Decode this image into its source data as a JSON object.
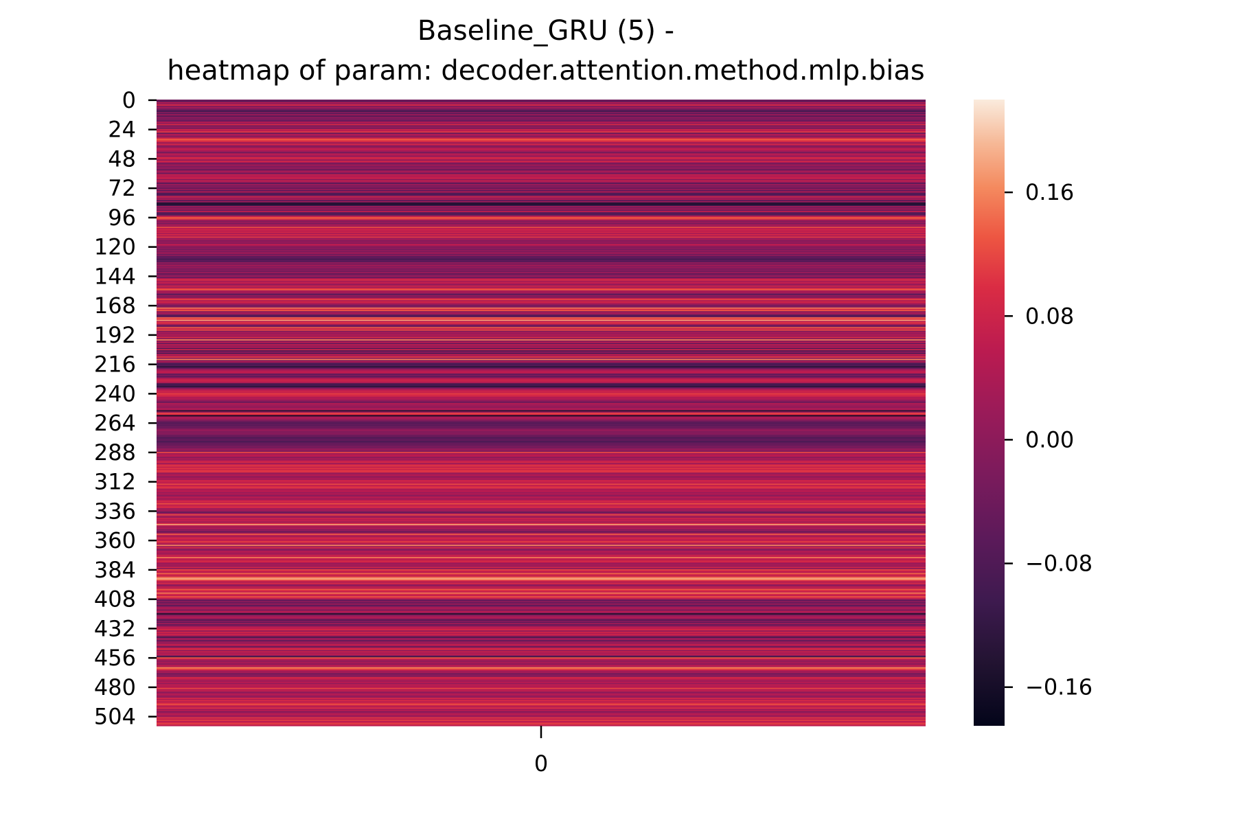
{
  "chart_data": {
    "type": "heatmap",
    "title": "Baseline_GRU (5) -",
    "subtitle": "heatmap of param: decoder.attention.method.mlp.bias",
    "xlabel": "",
    "ylabel": "",
    "n_rows": 512,
    "n_cols": 1,
    "x_ticks": [
      "0"
    ],
    "y_ticks": [
      "0",
      "24",
      "48",
      "72",
      "96",
      "120",
      "144",
      "168",
      "192",
      "216",
      "240",
      "264",
      "288",
      "312",
      "336",
      "360",
      "384",
      "408",
      "432",
      "456",
      "480",
      "504"
    ],
    "colorbar": {
      "colormap": "rocket",
      "vmin": -0.185,
      "vmax": 0.22,
      "ticks": [
        0.16,
        0.08,
        0.0,
        -0.08,
        -0.16
      ],
      "tick_labels": [
        "0.16",
        "0.08",
        "0.00",
        "−0.08",
        "−0.16"
      ]
    },
    "value_bands": [
      {
        "rows": [
          0,
          24
        ],
        "values": [
          -0.04,
          -0.08,
          0.02,
          -0.03,
          0.06,
          -0.05,
          0.01,
          -0.02
        ]
      },
      {
        "rows": [
          24,
          48
        ],
        "values": [
          0.1,
          0.08,
          0.05,
          -0.02,
          0.07,
          0.03,
          -0.01,
          0.06
        ]
      },
      {
        "rows": [
          48,
          72
        ],
        "values": [
          0.04,
          -0.03,
          0.06,
          0.02,
          -0.05,
          0.05,
          0.01,
          0.03
        ]
      },
      {
        "rows": [
          72,
          96
        ],
        "values": [
          -0.02,
          0.03,
          -0.06,
          0.04,
          -0.1,
          -0.12,
          -0.08,
          0.05
        ]
      },
      {
        "rows": [
          96,
          120
        ],
        "values": [
          0.12,
          0.04,
          0.06,
          0.02,
          0.05,
          0.01,
          0.07,
          0.03
        ]
      },
      {
        "rows": [
          120,
          144
        ],
        "values": [
          -0.04,
          -0.02,
          -0.06,
          -0.03,
          -0.05,
          0.02,
          -0.04,
          0.01
        ]
      },
      {
        "rows": [
          144,
          168
        ],
        "values": [
          0.05,
          -0.01,
          0.08,
          0.12,
          0.03,
          0.06,
          0.02,
          -0.03
        ]
      },
      {
        "rows": [
          168,
          192
        ],
        "values": [
          -0.06,
          -0.04,
          0.14,
          0.09,
          0.15,
          0.02,
          0.07,
          0.04
        ]
      },
      {
        "rows": [
          192,
          216
        ],
        "values": [
          0.06,
          0.01,
          0.08,
          -0.04,
          0.12,
          -0.05,
          0.03,
          -0.07
        ]
      },
      {
        "rows": [
          216,
          240
        ],
        "values": [
          -0.08,
          -0.05,
          -0.1,
          -0.03,
          0.04,
          0.06,
          0.07,
          0.05
        ]
      },
      {
        "rows": [
          240,
          264
        ],
        "values": [
          0.08,
          0.06,
          0.05,
          0.02,
          0.04,
          0.03,
          0.01,
          -0.02
        ]
      },
      {
        "rows": [
          264,
          288
        ],
        "values": [
          -0.04,
          -0.03,
          -0.05,
          -0.04,
          -0.06,
          -0.03,
          -0.02,
          -0.05
        ]
      },
      {
        "rows": [
          288,
          312
        ],
        "values": [
          0.1,
          0.02,
          0.06,
          0.08,
          0.03,
          0.07,
          0.05,
          0.09
        ]
      },
      {
        "rows": [
          312,
          336
        ],
        "values": [
          0.07,
          0.04,
          0.09,
          0.03,
          0.06,
          0.08,
          0.02,
          0.05
        ]
      },
      {
        "rows": [
          336,
          360
        ],
        "values": [
          0.04,
          -0.02,
          0.06,
          0.15,
          0.05,
          0.02,
          0.07,
          0.03
        ]
      },
      {
        "rows": [
          360,
          384
        ],
        "values": [
          0.03,
          0.08,
          0.05,
          0.02,
          0.06,
          0.04,
          0.12,
          0.03
        ]
      },
      {
        "rows": [
          384,
          408
        ],
        "values": [
          0.14,
          0.09,
          0.05,
          0.12,
          0.06,
          0.03,
          0.1,
          0.07
        ]
      },
      {
        "rows": [
          408,
          432
        ],
        "values": [
          0.02,
          -0.05,
          0.03,
          -0.02,
          0.06,
          -0.04,
          0.01,
          0.05
        ]
      },
      {
        "rows": [
          432,
          456
        ],
        "values": [
          0.04,
          0.06,
          -0.03,
          0.05,
          0.02,
          0.07,
          0.03,
          -0.08
        ]
      },
      {
        "rows": [
          456,
          480
        ],
        "values": [
          0.12,
          0.1,
          0.05,
          0.02,
          0.04,
          -0.02,
          0.03,
          0.01
        ]
      },
      {
        "rows": [
          480,
          512
        ],
        "values": [
          0.03,
          0.1,
          0.04,
          0.08,
          0.02,
          0.06,
          0.09,
          0.05
        ]
      }
    ],
    "notable_rows": [
      {
        "row": 258,
        "value": -0.17
      },
      {
        "row": 254,
        "value": -0.14
      },
      {
        "row": 97,
        "value": 0.12
      },
      {
        "row": 26,
        "value": 0.11
      },
      {
        "row": 364,
        "value": 0.16
      },
      {
        "row": 391,
        "value": 0.18
      },
      {
        "row": 456,
        "value": 0.13
      },
      {
        "row": 420,
        "value": -0.15
      }
    ]
  }
}
